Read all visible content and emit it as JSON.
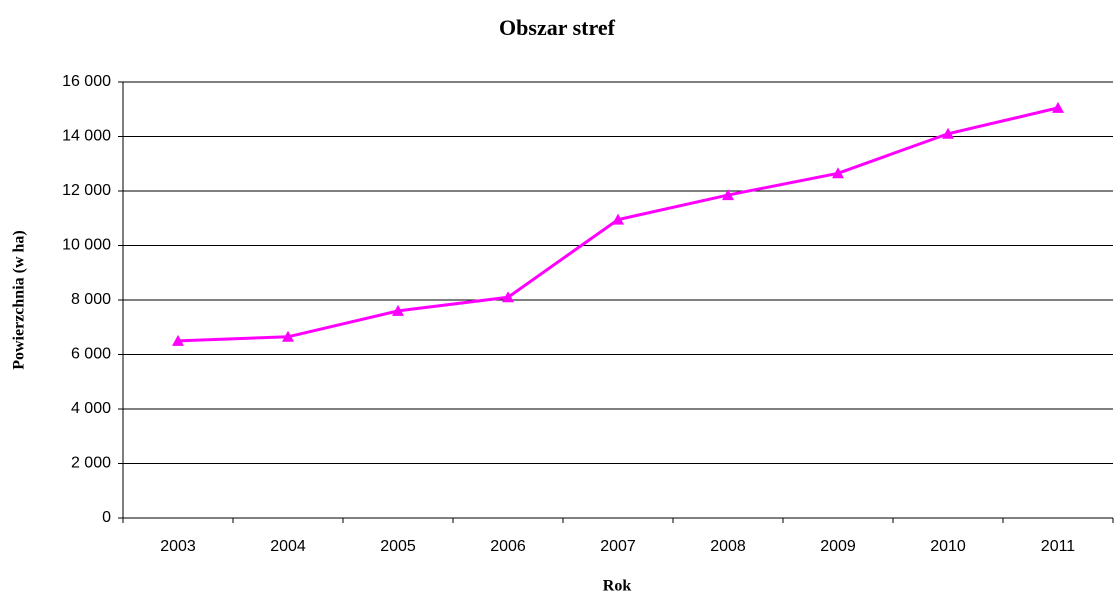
{
  "chart_data": {
    "type": "line",
    "title": "Obszar stref",
    "x_label": "Rok",
    "y_label": "Powierzchnia (w ha)",
    "categories": [
      "2003",
      "2004",
      "2005",
      "2006",
      "2007",
      "2008",
      "2009",
      "2010",
      "2011"
    ],
    "series": [
      {
        "name": "Obszar stref",
        "color": "#ff00ff",
        "values": [
          6500,
          6650,
          7600,
          8100,
          10950,
          11850,
          12650,
          14100,
          15050
        ]
      }
    ],
    "ylim": [
      0,
      16000
    ],
    "yticks": [
      0,
      {
        "value": 2000,
        "label": "2 000"
      },
      {
        "value": 4000,
        "label": "4 000"
      },
      {
        "value": 6000,
        "label": "6 000"
      },
      {
        "value": 8000,
        "label": "8 000"
      },
      {
        "value": 10000,
        "label": "10 000"
      },
      {
        "value": 12000,
        "label": "12 000"
      },
      {
        "value": 14000,
        "label": "14 000"
      },
      {
        "value": 16000,
        "label": "16 000"
      }
    ],
    "grid": true
  }
}
